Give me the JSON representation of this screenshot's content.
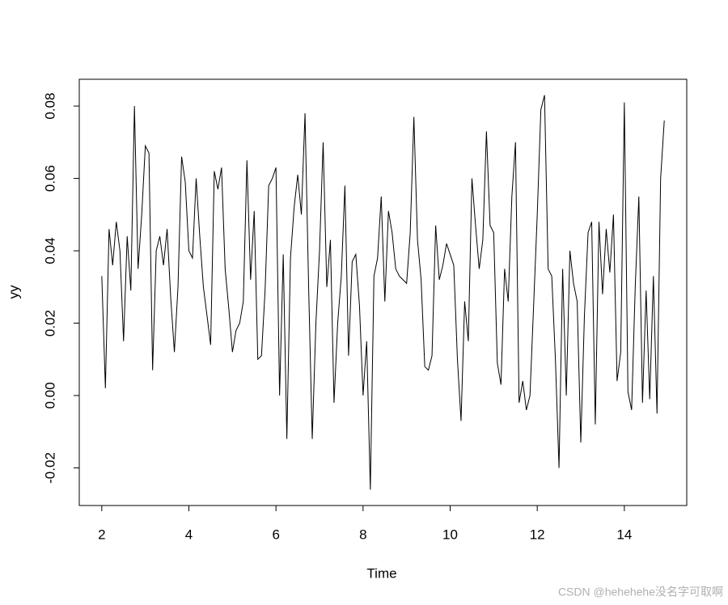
{
  "chart_data": {
    "type": "line",
    "xlabel": "Time",
    "ylabel": "yy",
    "watermark": "CSDN @hehehehe没名字可取啊",
    "x": [
      2,
      2.083,
      2.167,
      2.25,
      2.333,
      2.417,
      2.5,
      2.583,
      2.667,
      2.75,
      2.833,
      2.917,
      3,
      3.083,
      3.167,
      3.25,
      3.333,
      3.417,
      3.5,
      3.583,
      3.667,
      3.75,
      3.833,
      3.917,
      4,
      4.083,
      4.167,
      4.25,
      4.333,
      4.417,
      4.5,
      4.583,
      4.667,
      4.75,
      4.833,
      4.917,
      5,
      5.083,
      5.167,
      5.25,
      5.333,
      5.417,
      5.5,
      5.583,
      5.667,
      5.75,
      5.833,
      5.917,
      6,
      6.083,
      6.167,
      6.25,
      6.333,
      6.417,
      6.5,
      6.583,
      6.667,
      6.75,
      6.833,
      6.917,
      7,
      7.083,
      7.167,
      7.25,
      7.333,
      7.417,
      7.5,
      7.583,
      7.667,
      7.75,
      7.833,
      7.917,
      8,
      8.083,
      8.167,
      8.25,
      8.333,
      8.417,
      8.5,
      8.583,
      8.667,
      8.75,
      8.833,
      8.917,
      9,
      9.083,
      9.167,
      9.25,
      9.333,
      9.417,
      9.5,
      9.583,
      9.667,
      9.75,
      9.833,
      9.917,
      10,
      10.083,
      10.167,
      10.25,
      10.333,
      10.417,
      10.5,
      10.583,
      10.667,
      10.75,
      10.833,
      10.917,
      11,
      11.083,
      11.167,
      11.25,
      11.333,
      11.417,
      11.5,
      11.583,
      11.667,
      11.75,
      11.833,
      11.917,
      12,
      12.083,
      12.167,
      12.25,
      12.333,
      12.417,
      12.5,
      12.583,
      12.667,
      12.75,
      12.833,
      12.917,
      13,
      13.083,
      13.167,
      13.25,
      13.333,
      13.417,
      13.5,
      13.583,
      13.667,
      13.75,
      13.833,
      13.917,
      14,
      14.083,
      14.167,
      14.25,
      14.333,
      14.417,
      14.5,
      14.583,
      14.667,
      14.75,
      14.833,
      14.917
    ],
    "series": [
      {
        "color": "#000000",
        "values": [
          0.033,
          0.002,
          0.046,
          0.036,
          0.048,
          0.04,
          0.015,
          0.044,
          0.029,
          0.08,
          0.035,
          0.05,
          0.069,
          0.067,
          0.007,
          0.04,
          0.044,
          0.036,
          0.046,
          0.027,
          0.012,
          0.03,
          0.066,
          0.059,
          0.04,
          0.038,
          0.06,
          0.044,
          0.03,
          0.022,
          0.014,
          0.062,
          0.057,
          0.063,
          0.035,
          0.024,
          0.012,
          0.018,
          0.02,
          0.026,
          0.065,
          0.032,
          0.051,
          0.01,
          0.011,
          0.029,
          0.058,
          0.06,
          0.063,
          0.0,
          0.039,
          -0.012,
          0.038,
          0.052,
          0.061,
          0.05,
          0.078,
          0.03,
          -0.012,
          0.02,
          0.04,
          0.07,
          0.03,
          0.043,
          -0.002,
          0.02,
          0.033,
          0.058,
          0.011,
          0.037,
          0.039,
          0.025,
          0.0,
          0.015,
          -0.026,
          0.033,
          0.038,
          0.055,
          0.026,
          0.051,
          0.045,
          0.035,
          0.033,
          0.032,
          0.031,
          0.045,
          0.077,
          0.043,
          0.032,
          0.008,
          0.007,
          0.011,
          0.047,
          0.032,
          0.036,
          0.042,
          0.039,
          0.036,
          0.01,
          -0.007,
          0.026,
          0.015,
          0.06,
          0.047,
          0.035,
          0.043,
          0.073,
          0.047,
          0.045,
          0.009,
          0.003,
          0.035,
          0.026,
          0.055,
          0.07,
          -0.002,
          0.004,
          -0.004,
          0.0,
          0.025,
          0.05,
          0.079,
          0.083,
          0.035,
          0.033,
          0.01,
          -0.02,
          0.035,
          0.0,
          0.04,
          0.031,
          0.026,
          -0.013,
          0.022,
          0.045,
          0.048,
          -0.008,
          0.048,
          0.028,
          0.046,
          0.034,
          0.05,
          0.004,
          0.012,
          0.081,
          0.001,
          -0.004,
          0.03,
          0.055,
          -0.002,
          0.029,
          -0.001,
          0.033,
          -0.005,
          0.06,
          0.076
        ]
      }
    ],
    "xlim": [
      1.483,
      15.433
    ],
    "ylim": [
      -0.0304,
      0.0874
    ],
    "xticks": [
      2,
      4,
      6,
      8,
      10,
      12,
      14
    ],
    "yticks": [
      -0.02,
      {
        "value": 0,
        "label": "0.00"
      },
      0.02,
      0.04,
      0.06,
      0.08
    ],
    "grid": false
  }
}
